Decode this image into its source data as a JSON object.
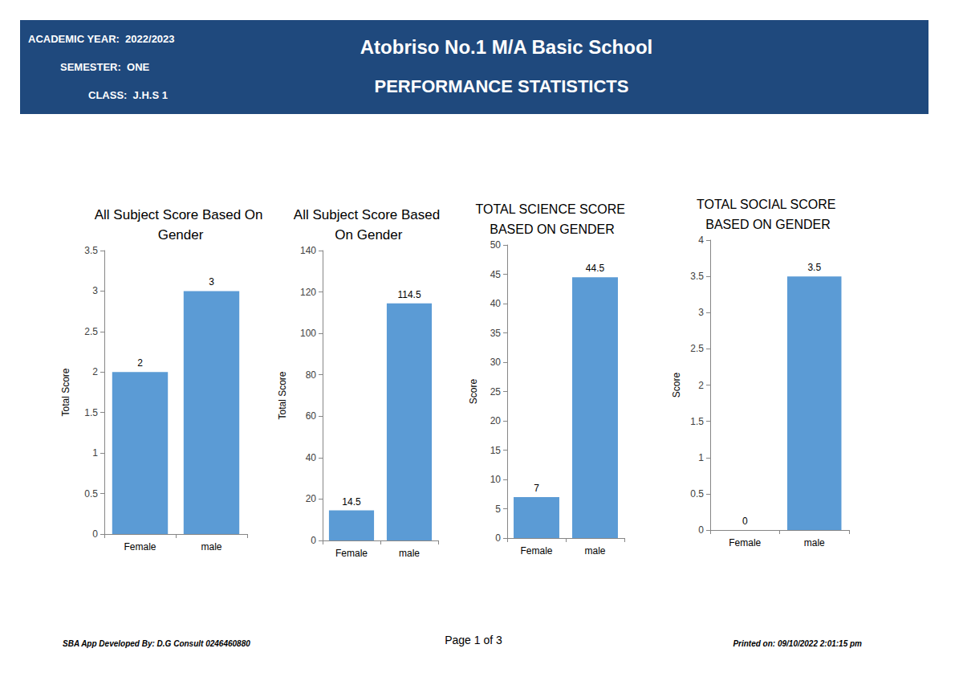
{
  "header": {
    "academic_year": "ACADEMIC YEAR:  2022/2023",
    "semester": "SEMESTER:  ONE",
    "class": "CLASS:  J.H.S 1",
    "school": "Atobriso No.1 M/A Basic School",
    "title": "PERFORMANCE STATISTICTS"
  },
  "footer": {
    "developer": "SBA App Developed By: D.G Consult 0246460880",
    "page": "Page 1 of 3",
    "printed": "Printed on: 09/10/2022 2:01:15 pm"
  },
  "chart_data": [
    {
      "type": "bar",
      "title": "All Subject Score Based On Gender",
      "y_label": "Total Score",
      "categories": [
        "Female",
        "male"
      ],
      "values": [
        2,
        3
      ],
      "color": "#5b9bd5",
      "ylim": [
        0,
        3.5
      ],
      "yticks": [
        0,
        0.5,
        1,
        1.5,
        2,
        2.5,
        3,
        3.5
      ],
      "grid": false,
      "data_labels": true
    },
    {
      "type": "bar",
      "title": "All Subject Score Based On Gender",
      "y_label": "Total Score",
      "categories": [
        "Female",
        "male"
      ],
      "values": [
        14.5,
        114.5
      ],
      "color": "#5b9bd5",
      "ylim": [
        0,
        140
      ],
      "yticks": [
        0,
        20,
        40,
        60,
        80,
        100,
        120,
        140
      ],
      "grid": false,
      "data_labels": true
    },
    {
      "type": "bar",
      "title": "TOTAL SCIENCE SCORE BASED ON GENDER",
      "y_label": "Score",
      "categories": [
        "Female",
        "male"
      ],
      "values": [
        7,
        44.5
      ],
      "color": "#5b9bd5",
      "ylim": [
        0,
        50
      ],
      "yticks": [
        0,
        5,
        10,
        15,
        20,
        25,
        30,
        35,
        40,
        45,
        50
      ],
      "grid": false,
      "data_labels": true
    },
    {
      "type": "bar",
      "title": "TOTAL SOCIAL SCORE BASED ON GENDER",
      "y_label": "Score",
      "categories": [
        "Female",
        "male"
      ],
      "values": [
        0,
        3.5
      ],
      "color": "#5b9bd5",
      "ylim": [
        0,
        4
      ],
      "yticks": [
        0,
        0.5,
        1,
        1.5,
        2,
        2.5,
        3,
        3.5,
        4
      ],
      "grid": false,
      "data_labels": true
    }
  ]
}
